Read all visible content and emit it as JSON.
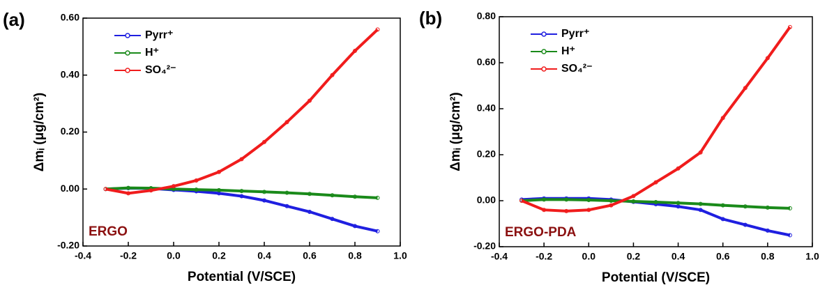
{
  "chart_data": [
    {
      "type": "line",
      "panel_label": "(a)",
      "annotation": "ERGO",
      "x_label": "Potential (V/SCE)",
      "y_label": "Δmᵢ (μg/cm²)",
      "x": [
        -0.3,
        -0.2,
        -0.1,
        0.0,
        0.1,
        0.2,
        0.3,
        0.4,
        0.5,
        0.6,
        0.7,
        0.8,
        0.9
      ],
      "series": [
        {
          "name": "Pyrr⁺",
          "color": "#1f1fe0",
          "values": [
            0,
            0.003,
            0.002,
            -0.003,
            -0.008,
            -0.015,
            -0.025,
            -0.04,
            -0.06,
            -0.08,
            -0.105,
            -0.13,
            -0.148
          ]
        },
        {
          "name": "H⁺",
          "color": "#1a8a1a",
          "values": [
            0,
            0.004,
            0.003,
            0,
            -0.002,
            -0.004,
            -0.007,
            -0.01,
            -0.013,
            -0.017,
            -0.022,
            -0.027,
            -0.031
          ]
        },
        {
          "name": "SO₄²⁻",
          "color": "#f01c1c",
          "values": [
            0,
            -0.015,
            -0.005,
            0.01,
            0.03,
            0.06,
            0.105,
            0.165,
            0.235,
            0.31,
            0.4,
            0.485,
            0.56
          ]
        }
      ],
      "xlim": [
        -0.4,
        1.0
      ],
      "xticks": [
        {
          "value": -0.4,
          "label": "-0.4"
        },
        {
          "value": -0.2,
          "label": "-0.2"
        },
        {
          "value": 0.0,
          "label": "0.0"
        },
        {
          "value": 0.2,
          "label": "0.2"
        },
        {
          "value": 0.4,
          "label": "0.4"
        },
        {
          "value": 0.6,
          "label": "0.6"
        },
        {
          "value": 0.8,
          "label": "0.8"
        },
        {
          "value": 1.0,
          "label": "1.0"
        }
      ],
      "ylim": [
        -0.2,
        0.6
      ],
      "yticks": [
        {
          "value": -0.2,
          "label": "-0.20"
        },
        {
          "value": 0.0,
          "label": "0.00"
        },
        {
          "value": 0.2,
          "label": "0.20"
        },
        {
          "value": 0.4,
          "label": "0.40"
        },
        {
          "value": 0.6,
          "label": "0.60"
        }
      ]
    },
    {
      "type": "line",
      "panel_label": "(b)",
      "annotation": "ERGO-PDA",
      "x_label": "Potential (V/SCE)",
      "y_label": "Δmᵢ (μg/cm²)",
      "x": [
        -0.3,
        -0.2,
        -0.1,
        0.0,
        0.1,
        0.2,
        0.3,
        0.4,
        0.5,
        0.6,
        0.7,
        0.8,
        0.9
      ],
      "series": [
        {
          "name": "Pyrr⁺",
          "color": "#1f1fe0",
          "values": [
            0.005,
            0.01,
            0.01,
            0.01,
            0.005,
            -0.005,
            -0.015,
            -0.025,
            -0.04,
            -0.08,
            -0.105,
            -0.13,
            -0.15
          ]
        },
        {
          "name": "H⁺",
          "color": "#1a8a1a",
          "values": [
            0,
            0.005,
            0.005,
            0.003,
            0,
            -0.003,
            -0.006,
            -0.01,
            -0.014,
            -0.02,
            -0.025,
            -0.03,
            -0.033
          ]
        },
        {
          "name": "SO₄²⁻",
          "color": "#f01c1c",
          "values": [
            0,
            -0.04,
            -0.045,
            -0.04,
            -0.02,
            0.02,
            0.08,
            0.14,
            0.21,
            0.36,
            0.49,
            0.62,
            0.755
          ]
        }
      ],
      "xlim": [
        -0.4,
        1.0
      ],
      "xticks": [
        {
          "value": -0.4,
          "label": "-0.4"
        },
        {
          "value": -0.2,
          "label": "-0.2"
        },
        {
          "value": 0.0,
          "label": "0.0"
        },
        {
          "value": 0.2,
          "label": "0.2"
        },
        {
          "value": 0.4,
          "label": "0.4"
        },
        {
          "value": 0.6,
          "label": "0.6"
        },
        {
          "value": 0.8,
          "label": "0.8"
        },
        {
          "value": 1.0,
          "label": "1.0"
        }
      ],
      "ylim": [
        -0.2,
        0.8
      ],
      "yticks": [
        {
          "value": -0.2,
          "label": "-0.20"
        },
        {
          "value": 0.0,
          "label": "0.00"
        },
        {
          "value": 0.2,
          "label": "0.20"
        },
        {
          "value": 0.4,
          "label": "0.40"
        },
        {
          "value": 0.6,
          "label": "0.60"
        },
        {
          "value": 0.8,
          "label": "0.80"
        }
      ]
    }
  ]
}
